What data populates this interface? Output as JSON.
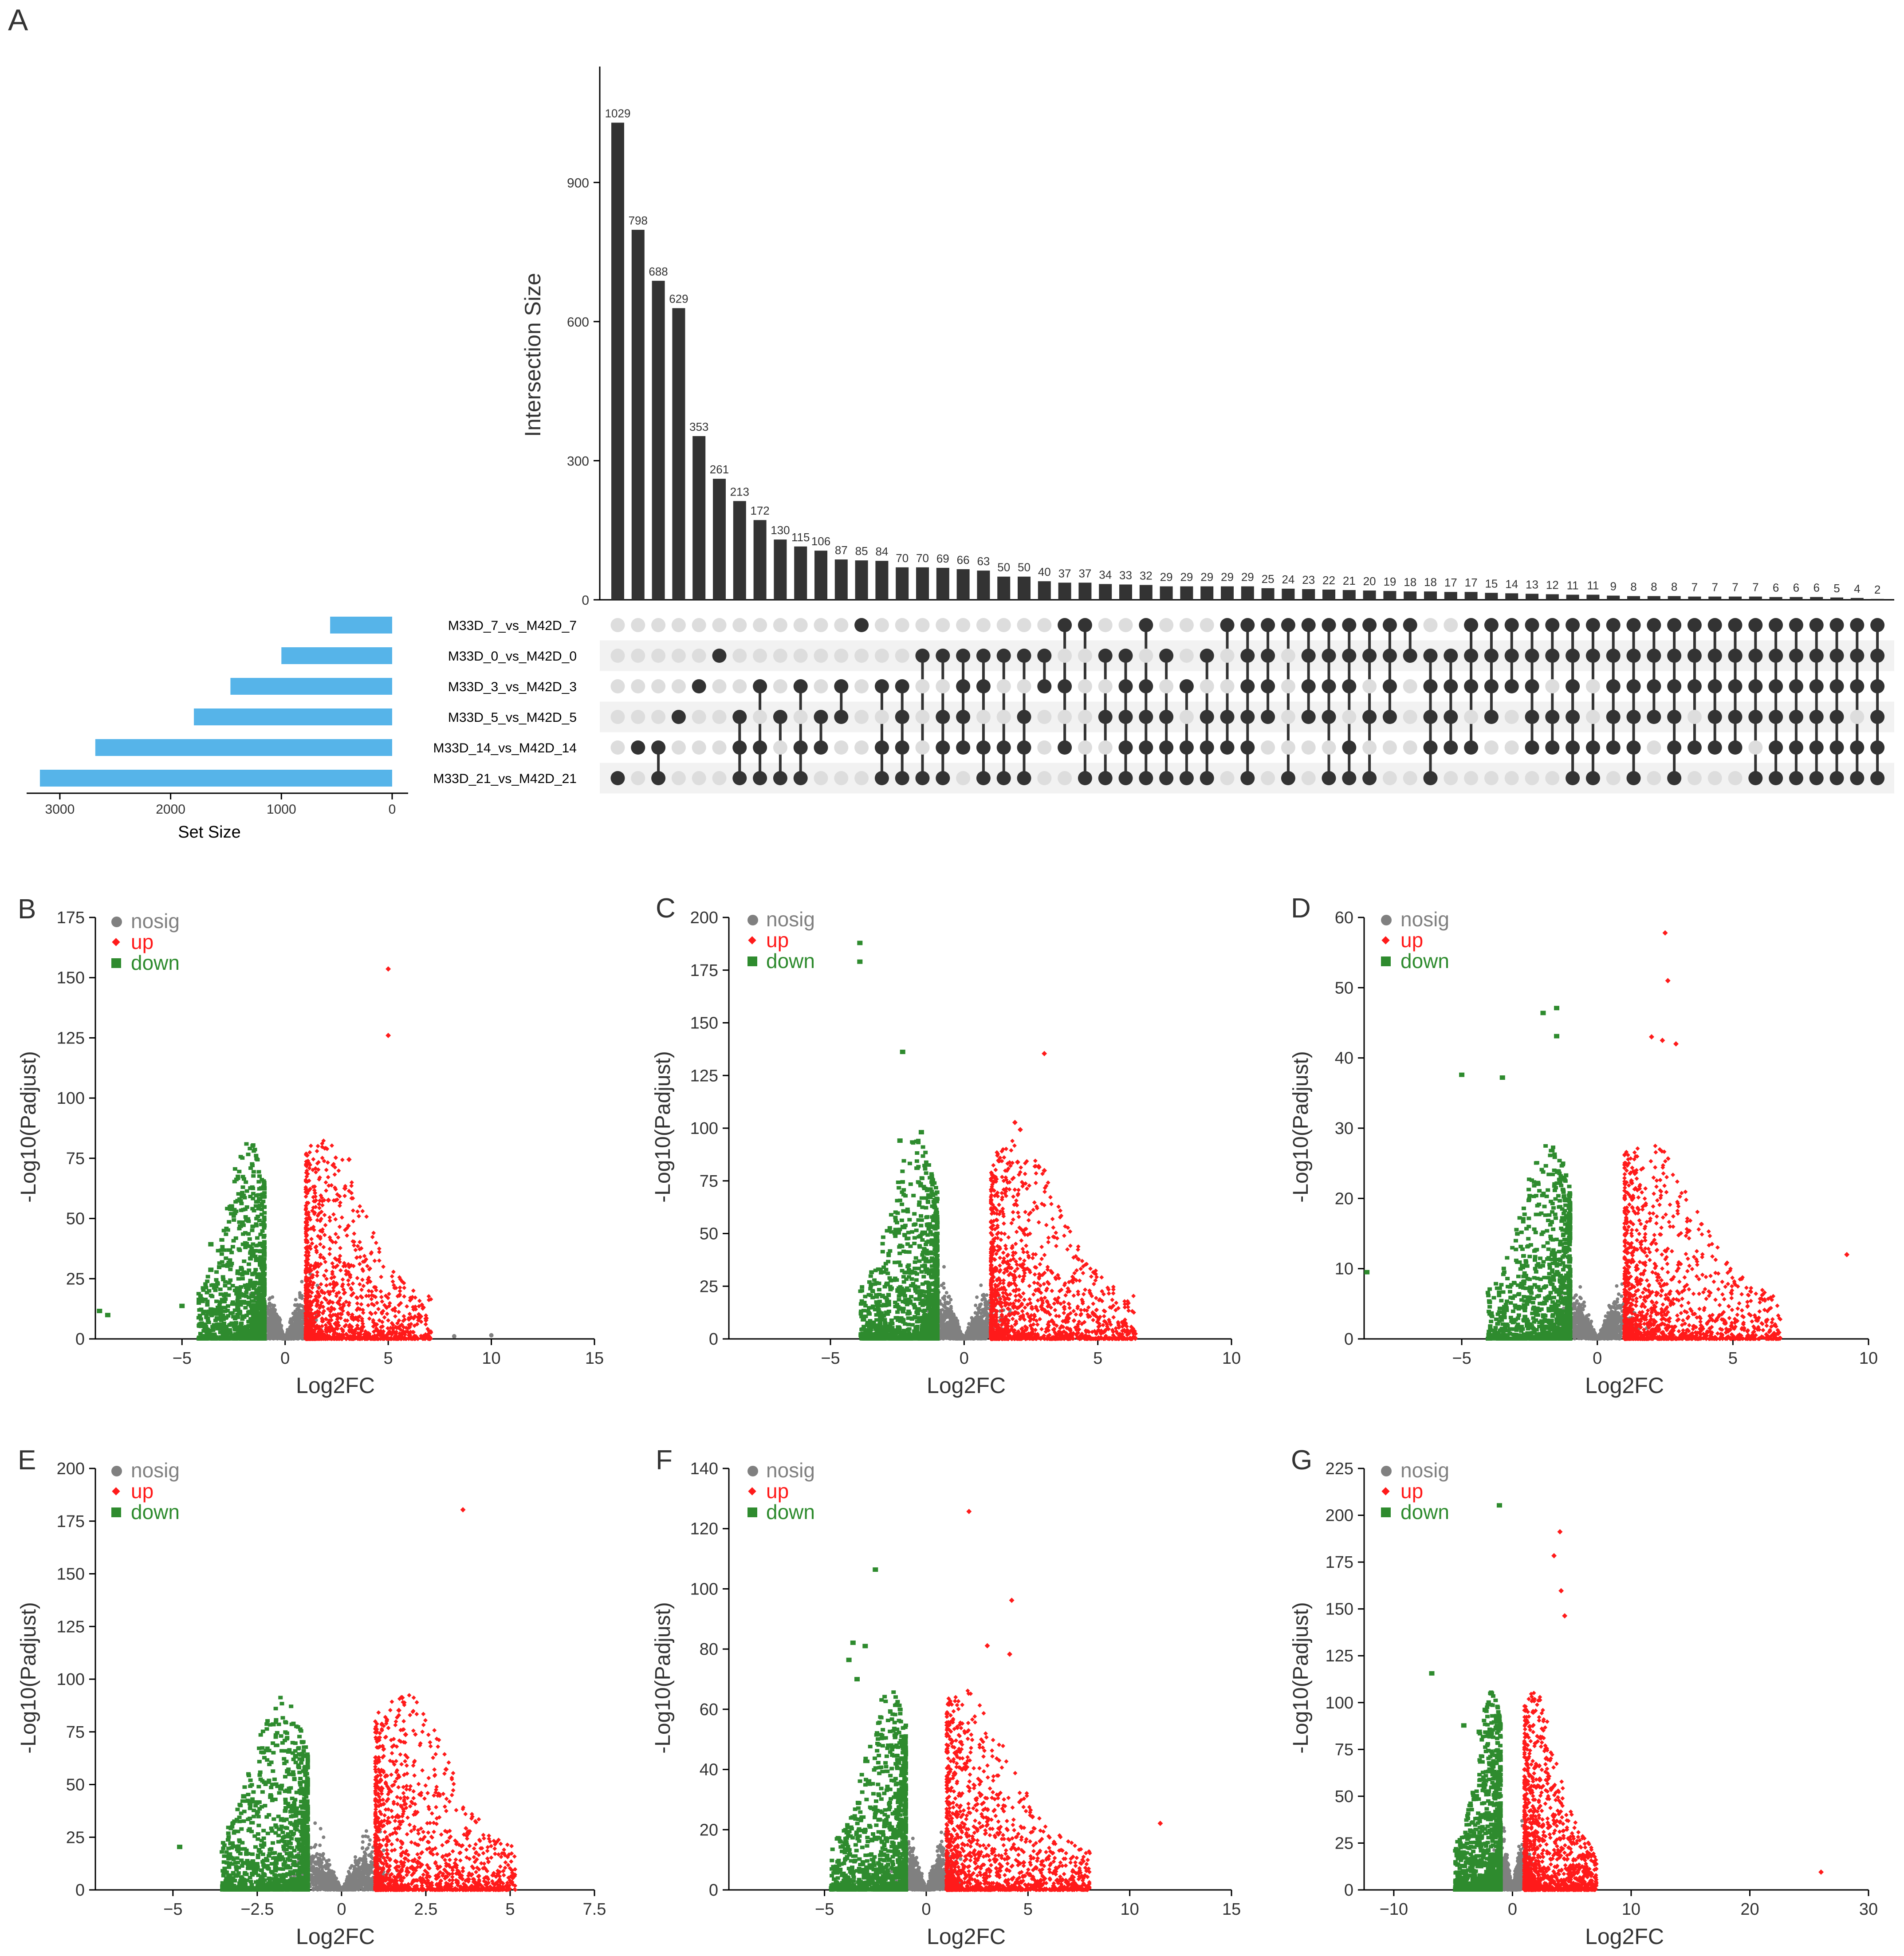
{
  "colors": {
    "bar": "#333333",
    "set_bar": "#56B4E9",
    "dot_on": "#333333",
    "dot_off": "#dddddd",
    "stripe": "#f2f2f2",
    "nosig": "#808080",
    "up": "#ff1a1a",
    "down": "#2e8b2e",
    "axis": "#000000",
    "text": "#333333"
  },
  "panel_labels": [
    "A",
    "B",
    "C",
    "D",
    "E",
    "F",
    "G"
  ],
  "chart_data": [
    {
      "panel": "A",
      "type": "bar",
      "subtype": "upset",
      "ylabel": "Intersection Size",
      "yticks": [
        0,
        300,
        600,
        900
      ],
      "ylim": [
        0,
        1150
      ],
      "values": [
        1029,
        798,
        688,
        629,
        353,
        261,
        213,
        172,
        130,
        115,
        106,
        87,
        85,
        84,
        70,
        70,
        69,
        66,
        63,
        50,
        50,
        40,
        37,
        37,
        34,
        33,
        32,
        29,
        29,
        29,
        29,
        29,
        25,
        24,
        23,
        22,
        21,
        20,
        19,
        18,
        18,
        17,
        17,
        15,
        14,
        13,
        12,
        11,
        11,
        9,
        8,
        8,
        8,
        7,
        7,
        7,
        7,
        6,
        6,
        6,
        5,
        4,
        2
      ],
      "sets": [
        "M33D_7_vs_M42D_7",
        "M33D_0_vs_M42D_0",
        "M33D_3_vs_M42D_3",
        "M33D_5_vs_M42D_5",
        "M33D_14_vs_M42D_14",
        "M33D_21_vs_M42D_21"
      ],
      "set_sizes": [
        560,
        1000,
        1460,
        1790,
        2680,
        3180
      ],
      "set_size_label": "Set Size",
      "set_size_ticks": [
        3000,
        2000,
        1000,
        0
      ],
      "memberships": [
        [
          5
        ],
        [
          4
        ],
        [
          4,
          5
        ],
        [
          3
        ],
        [
          2
        ],
        [
          1
        ],
        [
          3,
          4,
          5
        ],
        [
          2,
          4,
          5
        ],
        [
          3,
          5
        ],
        [
          2,
          4,
          5
        ],
        [
          3,
          4
        ],
        [
          2,
          3
        ],
        [
          0
        ],
        [
          2,
          4,
          5
        ],
        [
          2,
          3,
          4,
          5
        ],
        [
          1,
          5
        ],
        [
          1,
          3,
          4,
          5
        ],
        [
          1,
          2,
          3,
          4
        ],
        [
          1,
          2,
          4,
          5
        ],
        [
          1,
          4,
          5
        ],
        [
          1,
          3,
          4,
          5
        ],
        [
          1,
          2
        ],
        [
          0,
          2,
          4
        ],
        [
          0,
          5
        ],
        [
          1,
          3,
          5
        ],
        [
          1,
          2,
          3,
          4,
          5
        ],
        [
          0,
          2,
          3,
          4,
          5
        ],
        [
          1,
          3,
          4,
          5
        ],
        [
          2,
          4,
          5
        ],
        [
          1,
          3,
          4,
          5
        ],
        [
          0,
          3,
          4
        ],
        [
          0,
          1,
          2,
          3,
          4,
          5
        ],
        [
          0,
          1,
          2,
          3
        ],
        [
          0,
          5
        ],
        [
          0,
          1,
          2,
          3
        ],
        [
          0,
          1,
          2,
          3,
          5
        ],
        [
          0,
          1,
          2,
          4,
          5
        ],
        [
          0,
          1,
          3,
          5
        ],
        [
          0,
          1,
          2,
          3
        ],
        [
          0,
          1
        ],
        [
          1,
          2,
          3,
          4,
          5
        ],
        [
          1,
          2,
          3,
          4
        ],
        [
          0,
          1,
          2,
          4
        ],
        [
          0,
          1,
          2,
          3
        ],
        [
          0,
          1,
          2
        ],
        [
          0,
          1,
          2,
          3,
          4
        ],
        [
          0,
          1,
          3,
          4
        ],
        [
          0,
          1,
          2,
          3,
          4,
          5
        ],
        [
          0,
          1,
          4,
          5
        ],
        [
          0,
          1,
          2,
          3,
          4
        ],
        [
          0,
          1,
          2,
          3,
          4,
          5
        ],
        [
          0,
          1,
          2,
          3
        ],
        [
          0,
          1,
          2,
          3,
          4,
          5
        ],
        [
          0,
          1,
          2,
          4
        ],
        [
          0,
          1,
          2,
          3,
          4
        ],
        [
          0,
          1,
          2,
          3,
          4
        ],
        [
          0,
          1,
          2,
          3,
          5
        ],
        [
          0,
          1,
          2,
          3,
          4,
          5
        ],
        [
          0,
          1,
          2,
          3,
          4,
          5
        ],
        [
          0,
          1,
          2,
          3,
          4,
          5
        ],
        [
          0,
          1,
          2,
          3,
          4,
          5
        ],
        [
          0,
          1,
          2,
          4,
          5
        ],
        [
          0,
          1,
          2,
          3,
          4,
          5
        ]
      ]
    },
    {
      "panel": "B",
      "type": "scatter",
      "subtype": "volcano",
      "xlabel": "Log2FC",
      "ylabel": "-Log10(Padjust)",
      "xlim": [
        -9.2,
        15
      ],
      "ylim": [
        0,
        175
      ],
      "xticks": [
        -5,
        0,
        5,
        10,
        15
      ],
      "yticks": [
        0,
        25,
        50,
        75,
        100,
        125,
        150,
        175
      ],
      "legend": [
        "nosig",
        "up",
        "down"
      ],
      "legend_position": "top-left",
      "ext_up": [
        [
          5.0,
          153.6
        ],
        [
          5.0,
          126.0
        ],
        [
          3.1,
          74.5
        ],
        [
          2.9,
          62.5
        ],
        [
          2.1,
          57.6
        ]
      ],
      "ext_down": [
        [
          -2.6,
          55.0
        ],
        [
          -3.6,
          39.3
        ],
        [
          -3.6,
          28.7
        ],
        [
          -5.0,
          13.7
        ],
        [
          -9.0,
          11.6
        ],
        [
          -8.6,
          9.9
        ]
      ],
      "ext_nosig": [
        [
          8.2,
          1.1
        ],
        [
          10.0,
          1.5
        ]
      ]
    },
    {
      "panel": "C",
      "type": "scatter",
      "subtype": "volcano",
      "xlabel": "Log2FC",
      "ylabel": "-Log10(Padjust)",
      "xlim": [
        -8.8,
        10
      ],
      "ylim": [
        0,
        200
      ],
      "xticks": [
        -5,
        0,
        5,
        10
      ],
      "yticks": [
        0,
        25,
        50,
        75,
        100,
        125,
        150,
        175,
        200
      ],
      "legend": [
        "nosig",
        "up",
        "down"
      ],
      "legend_position": "top-left",
      "ext_up": [
        [
          3.0,
          135.4
        ],
        [
          1.9,
          102.7
        ],
        [
          2.1,
          99.3
        ],
        [
          2.0,
          83.9
        ],
        [
          2.8,
          81.5
        ],
        [
          3.0,
          79.9
        ]
      ],
      "ext_down": [
        [
          -3.9,
          187.9
        ],
        [
          -3.9,
          179.0
        ],
        [
          -2.3,
          136.2
        ],
        [
          -1.6,
          98.1
        ],
        [
          -2.4,
          94.1
        ]
      ],
      "ext_nosig": []
    },
    {
      "panel": "D",
      "type": "scatter",
      "subtype": "volcano",
      "xlabel": "Log2FC",
      "ylabel": "-Log10(Padjust)",
      "xlim": [
        -8.6,
        10
      ],
      "ylim": [
        0,
        60
      ],
      "xticks": [
        -5,
        0,
        5,
        10
      ],
      "yticks": [
        0,
        10,
        20,
        30,
        40,
        50,
        60
      ],
      "legend": [
        "nosig",
        "up",
        "down"
      ],
      "legend_position": "top-left",
      "ext_up": [
        [
          2.5,
          57.8
        ],
        [
          2.6,
          51.0
        ],
        [
          2.0,
          43.0
        ],
        [
          2.4,
          42.5
        ],
        [
          2.9,
          42.0
        ],
        [
          9.2,
          12.0
        ]
      ],
      "ext_down": [
        [
          -1.5,
          47.1
        ],
        [
          -2.0,
          46.4
        ],
        [
          -1.5,
          43.1
        ],
        [
          -5.0,
          37.6
        ],
        [
          -3.5,
          37.2
        ],
        [
          -8.5,
          9.5
        ]
      ],
      "ext_nosig": []
    },
    {
      "panel": "E",
      "type": "scatter",
      "subtype": "volcano",
      "xlabel": "Log2FC",
      "ylabel": "-Log10(Padjust)",
      "xlim": [
        -7.3,
        7.5
      ],
      "ylim": [
        0,
        200
      ],
      "xticks": [
        -5,
        -2.5,
        0,
        2.5,
        5,
        7.5
      ],
      "yticks": [
        0,
        25,
        50,
        75,
        100,
        125,
        150,
        175,
        200
      ],
      "legend": [
        "nosig",
        "up",
        "down"
      ],
      "legend_position": "top-left",
      "ext_up": [
        [
          3.6,
          180.4
        ],
        [
          1.8,
          91.2
        ],
        [
          1.7,
          85.2
        ],
        [
          1.9,
          73.7
        ],
        [
          3.1,
          57.2
        ]
      ],
      "ext_down": [
        [
          -1.6,
          56.3
        ],
        [
          -1.8,
          48.1
        ],
        [
          -2.1,
          44.2
        ],
        [
          -2.9,
          44.4
        ],
        [
          -4.8,
          20.4
        ]
      ],
      "ext_nosig": []
    },
    {
      "panel": "F",
      "type": "scatter",
      "subtype": "volcano",
      "xlabel": "Log2FC",
      "ylabel": "-Log10(Padjust)",
      "xlim": [
        -9.7,
        15
      ],
      "ylim": [
        0,
        140
      ],
      "xticks": [
        -5,
        0,
        5,
        10,
        15
      ],
      "yticks": [
        0,
        20,
        40,
        60,
        80,
        100,
        120,
        140
      ],
      "legend": [
        "nosig",
        "up",
        "down"
      ],
      "legend_position": "top-left",
      "ext_up": [
        [
          2.1,
          125.7
        ],
        [
          4.2,
          96.2
        ],
        [
          3.0,
          81.1
        ],
        [
          4.1,
          78.3
        ],
        [
          11.5,
          22.1
        ]
      ],
      "ext_down": [
        [
          -2.5,
          106.4
        ],
        [
          -3.6,
          82.1
        ],
        [
          -3.0,
          81.0
        ],
        [
          -3.8,
          76.4
        ],
        [
          -3.4,
          70.0
        ]
      ],
      "ext_nosig": []
    },
    {
      "panel": "G",
      "type": "scatter",
      "subtype": "volcano",
      "xlabel": "Log2FC",
      "ylabel": "-Log10(Padjust)",
      "xlim": [
        -12.5,
        30
      ],
      "ylim": [
        0,
        225
      ],
      "xticks": [
        -10,
        0,
        10,
        20,
        30
      ],
      "yticks": [
        0,
        25,
        50,
        75,
        100,
        125,
        150,
        175,
        200,
        225
      ],
      "legend": [
        "nosig",
        "up",
        "down"
      ],
      "legend_position": "top-left",
      "ext_up": [
        [
          4.0,
          191.2
        ],
        [
          3.5,
          178.4
        ],
        [
          4.1,
          159.7
        ],
        [
          4.4,
          146.3
        ],
        [
          26.0,
          9.5
        ]
      ],
      "ext_down": [
        [
          -1.1,
          205.3
        ],
        [
          -6.8,
          115.6
        ],
        [
          -2.3,
          96.1
        ],
        [
          -4.1,
          87.8
        ],
        [
          -2.8,
          84.4
        ]
      ],
      "ext_nosig": []
    }
  ]
}
